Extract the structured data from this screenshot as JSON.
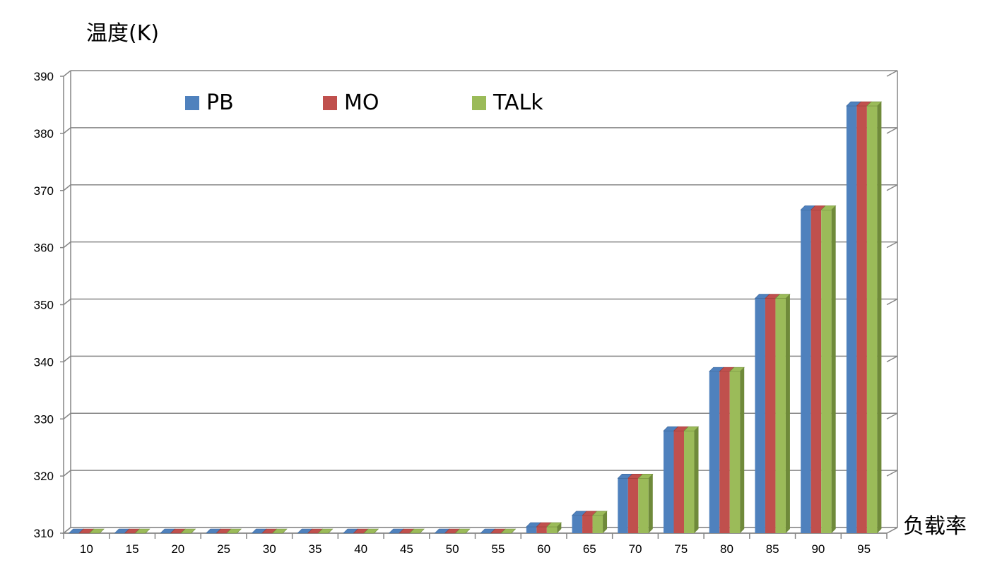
{
  "chart_data": {
    "type": "bar",
    "ylabel": "温度(K)",
    "xlabel": "负载率",
    "ylim": [
      310,
      390
    ],
    "yticks": [
      310,
      320,
      330,
      340,
      350,
      360,
      370,
      380,
      390
    ],
    "categories": [
      "10",
      "15",
      "20",
      "25",
      "30",
      "35",
      "40",
      "45",
      "50",
      "55",
      "60",
      "65",
      "70",
      "75",
      "80",
      "85",
      "90",
      "95"
    ],
    "series": [
      {
        "name": "PB",
        "color": "#4F81BD",
        "side": "#3A6699",
        "values": [
          310,
          310,
          310,
          310,
          310,
          310,
          310,
          310,
          310,
          310,
          311.1,
          313.1,
          319.6,
          327.9,
          338.3,
          351.1,
          366.6,
          384.8
        ]
      },
      {
        "name": "MO",
        "color": "#C0504D",
        "side": "#9A3A37",
        "values": [
          310,
          310,
          310,
          310,
          310,
          310,
          310,
          310,
          310,
          310,
          311.1,
          313.1,
          319.6,
          327.9,
          338.3,
          351.1,
          366.6,
          384.8
        ]
      },
      {
        "name": "TALk",
        "color": "#9BBB59",
        "side": "#6F8A3A",
        "values": [
          310,
          310,
          310,
          310,
          310,
          310,
          310,
          310,
          310,
          310,
          311.1,
          313.1,
          319.6,
          327.9,
          338.3,
          351.1,
          366.6,
          384.8
        ]
      }
    ],
    "grid": true,
    "legend_position": "top-left"
  }
}
